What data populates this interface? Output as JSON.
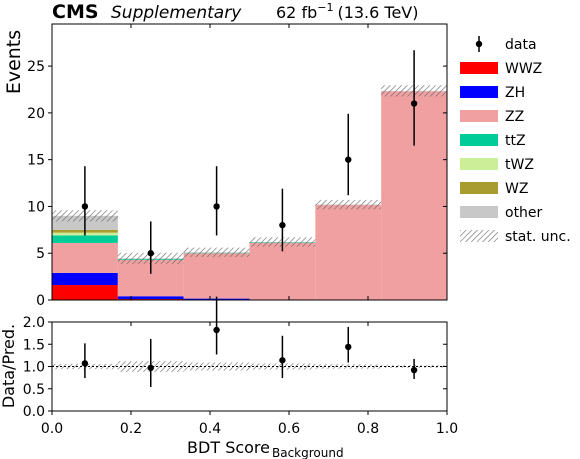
{
  "header": {
    "experiment": "CMS",
    "label": "Supplementary",
    "lumi_value": "62 fb",
    "lumi_exp": "−1",
    "lumi_energy": "(13.6 TeV)"
  },
  "chart_data": [
    {
      "type": "bar",
      "stacked": true,
      "xlim": [
        0.0,
        1.0
      ],
      "ylim": [
        0,
        29.5
      ],
      "ylabel": "Events",
      "yticks": [
        0,
        5,
        10,
        15,
        20,
        25
      ],
      "bin_edges": [
        0.0,
        0.1667,
        0.3333,
        0.5,
        0.6667,
        0.8333,
        1.0
      ],
      "series": [
        {
          "name": "WWZ",
          "color": "#ff0000",
          "values": [
            1.6,
            0.1,
            0.05,
            0.0,
            0.0,
            0.0
          ]
        },
        {
          "name": "ZH",
          "color": "#0000ff",
          "values": [
            1.3,
            0.3,
            0.1,
            0.05,
            0.05,
            0.0
          ]
        },
        {
          "name": "ZZ",
          "color": "#f0a0a0",
          "values": [
            3.2,
            3.9,
            4.85,
            6.05,
            10.1,
            22.3
          ]
        },
        {
          "name": "ttZ",
          "color": "#00cc99",
          "values": [
            0.8,
            0.1,
            0.05,
            0.05,
            0.0,
            0.0
          ]
        },
        {
          "name": "tWZ",
          "color": "#ccee99",
          "values": [
            0.3,
            0.0,
            0.0,
            0.0,
            0.0,
            0.0
          ]
        },
        {
          "name": "WZ",
          "color": "#a89c30",
          "values": [
            0.3,
            0.0,
            0.0,
            0.0,
            0.0,
            0.0
          ]
        },
        {
          "name": "other",
          "color": "#c8c8c8",
          "values": [
            1.5,
            0.05,
            0.05,
            0.05,
            0.05,
            0.05
          ]
        }
      ],
      "stat_unc": {
        "name": "stat. unc.",
        "values": [
          0.6,
          0.6,
          0.5,
          0.5,
          0.5,
          0.6
        ]
      },
      "data": {
        "name": "data",
        "x": [
          0.0833,
          0.25,
          0.4167,
          0.5833,
          0.75,
          0.9167
        ],
        "y": [
          10,
          5,
          10,
          8,
          15,
          21
        ],
        "err_up": [
          4.3,
          3.4,
          4.3,
          3.9,
          4.9,
          5.7
        ],
        "err_down": [
          3.1,
          2.2,
          3.1,
          2.8,
          3.8,
          4.5
        ]
      },
      "legend_position": "right"
    },
    {
      "type": "scatter",
      "xlim": [
        0.0,
        1.0
      ],
      "ylim": [
        0.0,
        2.0
      ],
      "xlabel": "BDT Score",
      "xlabel_sub": "Background",
      "ylabel": "Data/Pred.",
      "yticks": [
        "0.0",
        "0.5",
        "1.0",
        "1.5",
        "2.0"
      ],
      "xticks": [
        "0.0",
        "0.2",
        "0.4",
        "0.6",
        "0.8",
        "1.0"
      ],
      "reference_line": 1.0,
      "x": [
        0.0833,
        0.25,
        0.4167,
        0.5833,
        0.75,
        0.9167
      ],
      "y": [
        1.07,
        0.97,
        1.82,
        1.14,
        1.44,
        0.92
      ],
      "err_up": [
        0.45,
        0.65,
        0.75,
        0.55,
        0.45,
        0.25
      ],
      "err_down": [
        0.33,
        0.43,
        0.55,
        0.4,
        0.35,
        0.2
      ],
      "unc_band": [
        0.06,
        0.12,
        0.09,
        0.07,
        0.05,
        0.03
      ]
    }
  ]
}
